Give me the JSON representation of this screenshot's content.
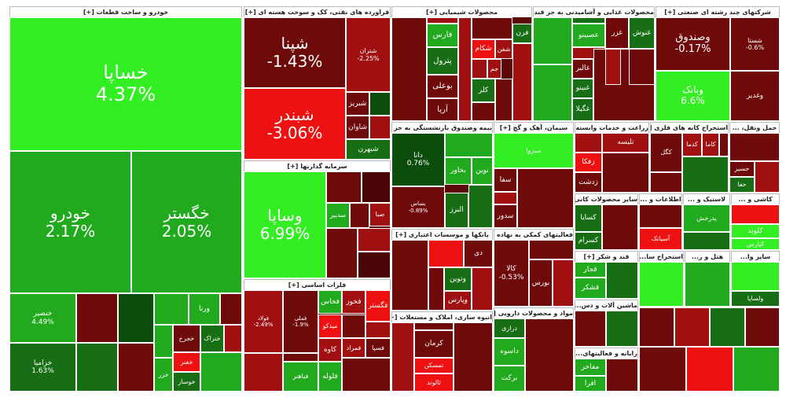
{
  "sectors": [
    {
      "title": "خودرو و ساخت قطعات [+]",
      "tiles": [
        {
          "label": "خساپا",
          "change": "4.37%"
        },
        {
          "label": "خودرو",
          "change": "2.17%"
        },
        {
          "label": "خگستر",
          "change": "2.05%"
        },
        {
          "label": "خنصیر",
          "change": "4.49%"
        },
        {
          "label": "خزامیا",
          "change": "1.63%"
        },
        {
          "label": "ورنا"
        },
        {
          "label": "ختراک"
        },
        {
          "label": "خفنر"
        },
        {
          "label": "خوساز"
        },
        {
          "label": "خزر"
        },
        {
          "label": "خجرخ"
        }
      ]
    },
    {
      "title": "فراورده های نفتی، کک و سوخت هسته ای [+]",
      "tiles": [
        {
          "label": "شپنا",
          "change": "-1.43%"
        },
        {
          "label": "شبندر",
          "change": "-3.06%"
        },
        {
          "label": "شتران",
          "change": "-2.25%"
        },
        {
          "label": "شبریز"
        },
        {
          "label": "شاوان"
        },
        {
          "label": "شبهرن"
        }
      ]
    },
    {
      "title": "سرمایه گذاریها [+]",
      "tiles": [
        {
          "label": "وساپا",
          "change": "6.99%"
        },
        {
          "label": "سدبیر"
        },
        {
          "label": "صبا"
        }
      ]
    },
    {
      "title": "فلزات اساسی [+]",
      "tiles": [
        {
          "label": "فولاد",
          "change": "-2.49%"
        },
        {
          "label": "فملی",
          "change": "-1.9%"
        },
        {
          "label": "فخاس"
        },
        {
          "label": "فخوز"
        },
        {
          "label": "فگستر"
        },
        {
          "label": "فمراد"
        },
        {
          "label": "میدکو"
        },
        {
          "label": "کاوه"
        },
        {
          "label": "فسپا"
        },
        {
          "label": "فلوله"
        },
        {
          "label": "فباهنر"
        }
      ]
    },
    {
      "title": "محصولات شیمیایی [+]",
      "tiles": [
        {
          "label": "فارس"
        },
        {
          "label": "پترول"
        },
        {
          "label": "بوعلی"
        },
        {
          "label": "آریا"
        },
        {
          "label": "شکام"
        },
        {
          "label": "شفن"
        },
        {
          "label": "کلر"
        },
        {
          "label": "فرن"
        },
        {
          "label": "جم"
        }
      ]
    },
    {
      "title": "محصولات غذایی و آشامیدنی به جز قند و شکر [+]",
      "tiles": [
        {
          "label": "غنوش"
        },
        {
          "label": "غزر"
        },
        {
          "label": "غالبر"
        },
        {
          "label": "غبینو"
        },
        {
          "label": "غگیلا"
        },
        {
          "label": "عصبینو"
        }
      ]
    },
    {
      "title": "شرکتهای چند رشته ای صنعتی [+]",
      "tiles": [
        {
          "label": "وصندوق",
          "change": "-0.17%"
        },
        {
          "label": "شستا",
          "change": "-0.6%"
        },
        {
          "label": "وبانک",
          "change": "6.6%"
        },
        {
          "label": "وغدیر"
        }
      ]
    },
    {
      "title": "بیمه وصندوق بازنشستگی به جز تامین [+]",
      "tiles": [
        {
          "label": "دانا",
          "change": "0.76%"
        },
        {
          "label": "بساس",
          "change": "-0.89%"
        },
        {
          "label": "البرز"
        },
        {
          "label": "نوین"
        },
        {
          "label": "بخاور"
        }
      ]
    },
    {
      "title": "سیمان، آهک و گچ [+]",
      "tiles": [
        {
          "label": "سبزوا"
        },
        {
          "label": "سفا"
        },
        {
          "label": "سدور"
        }
      ]
    },
    {
      "title": "زراعت و خدمات وابسته [+]",
      "tiles": [
        {
          "label": "تلیسه"
        },
        {
          "label": "زفکا"
        },
        {
          "label": "زدشت"
        }
      ]
    },
    {
      "title": "استخراج کانه های فلزی [+]",
      "tiles": [
        {
          "label": "کاما"
        },
        {
          "label": "کدما"
        },
        {
          "label": "کگل"
        }
      ]
    },
    {
      "title": "حمل ونقل، ...",
      "tiles": [
        {
          "label": "حسیر"
        },
        {
          "label": "حفا"
        }
      ]
    },
    {
      "title": "بانکها و موسسات اعتباری [+]",
      "tiles": [
        {
          "label": "دی"
        },
        {
          "label": "وتوین"
        },
        {
          "label": "وپارس"
        }
      ]
    },
    {
      "title": "انبوه سازی، املاک و مستغلات [+]",
      "tiles": [
        {
          "label": "کرمان"
        },
        {
          "label": "تمسکن"
        },
        {
          "label": "ثالوند"
        }
      ]
    },
    {
      "title": "فعالیتهای کمکی به نهاده ...",
      "tiles": [
        {
          "label": "کالا",
          "change": "-0.53%"
        },
        {
          "label": "بورس"
        }
      ]
    },
    {
      "title": "مواد و محصولات دارویی [+]",
      "tiles": [
        {
          "label": "برکت"
        },
        {
          "label": "داسوه"
        },
        {
          "label": "درازی"
        }
      ]
    },
    {
      "title": "سایر محصولات کانی ...",
      "tiles": [
        {
          "label": "کسایا"
        },
        {
          "label": "کسرام"
        }
      ]
    },
    {
      "title": "اطلاعات و ...",
      "tiles": [
        {
          "label": "آسیاتک"
        }
      ]
    },
    {
      "title": "لاستیک و ...",
      "tiles": [
        {
          "label": "پدرخش"
        }
      ]
    },
    {
      "title": "کاشی و ...",
      "tiles": [
        {
          "label": "کلوند"
        },
        {
          "label": "کپارس"
        }
      ]
    },
    {
      "title": "قند و شکر [+]",
      "tiles": [
        {
          "label": "قجار"
        },
        {
          "label": "قشکر"
        }
      ]
    },
    {
      "title": "ماشین آلات و دس...",
      "tiles": []
    },
    {
      "title": "رایانه و فعالیتهای...",
      "tiles": [
        {
          "label": "مفاخر"
        },
        {
          "label": "افرا"
        }
      ]
    },
    {
      "title": "استخراج سا...",
      "tiles": []
    },
    {
      "title": "هتل و ر...",
      "tiles": []
    },
    {
      "title": "سایر وا...",
      "tiles": [
        {
          "label": "ولساپا"
        }
      ]
    }
  ]
}
